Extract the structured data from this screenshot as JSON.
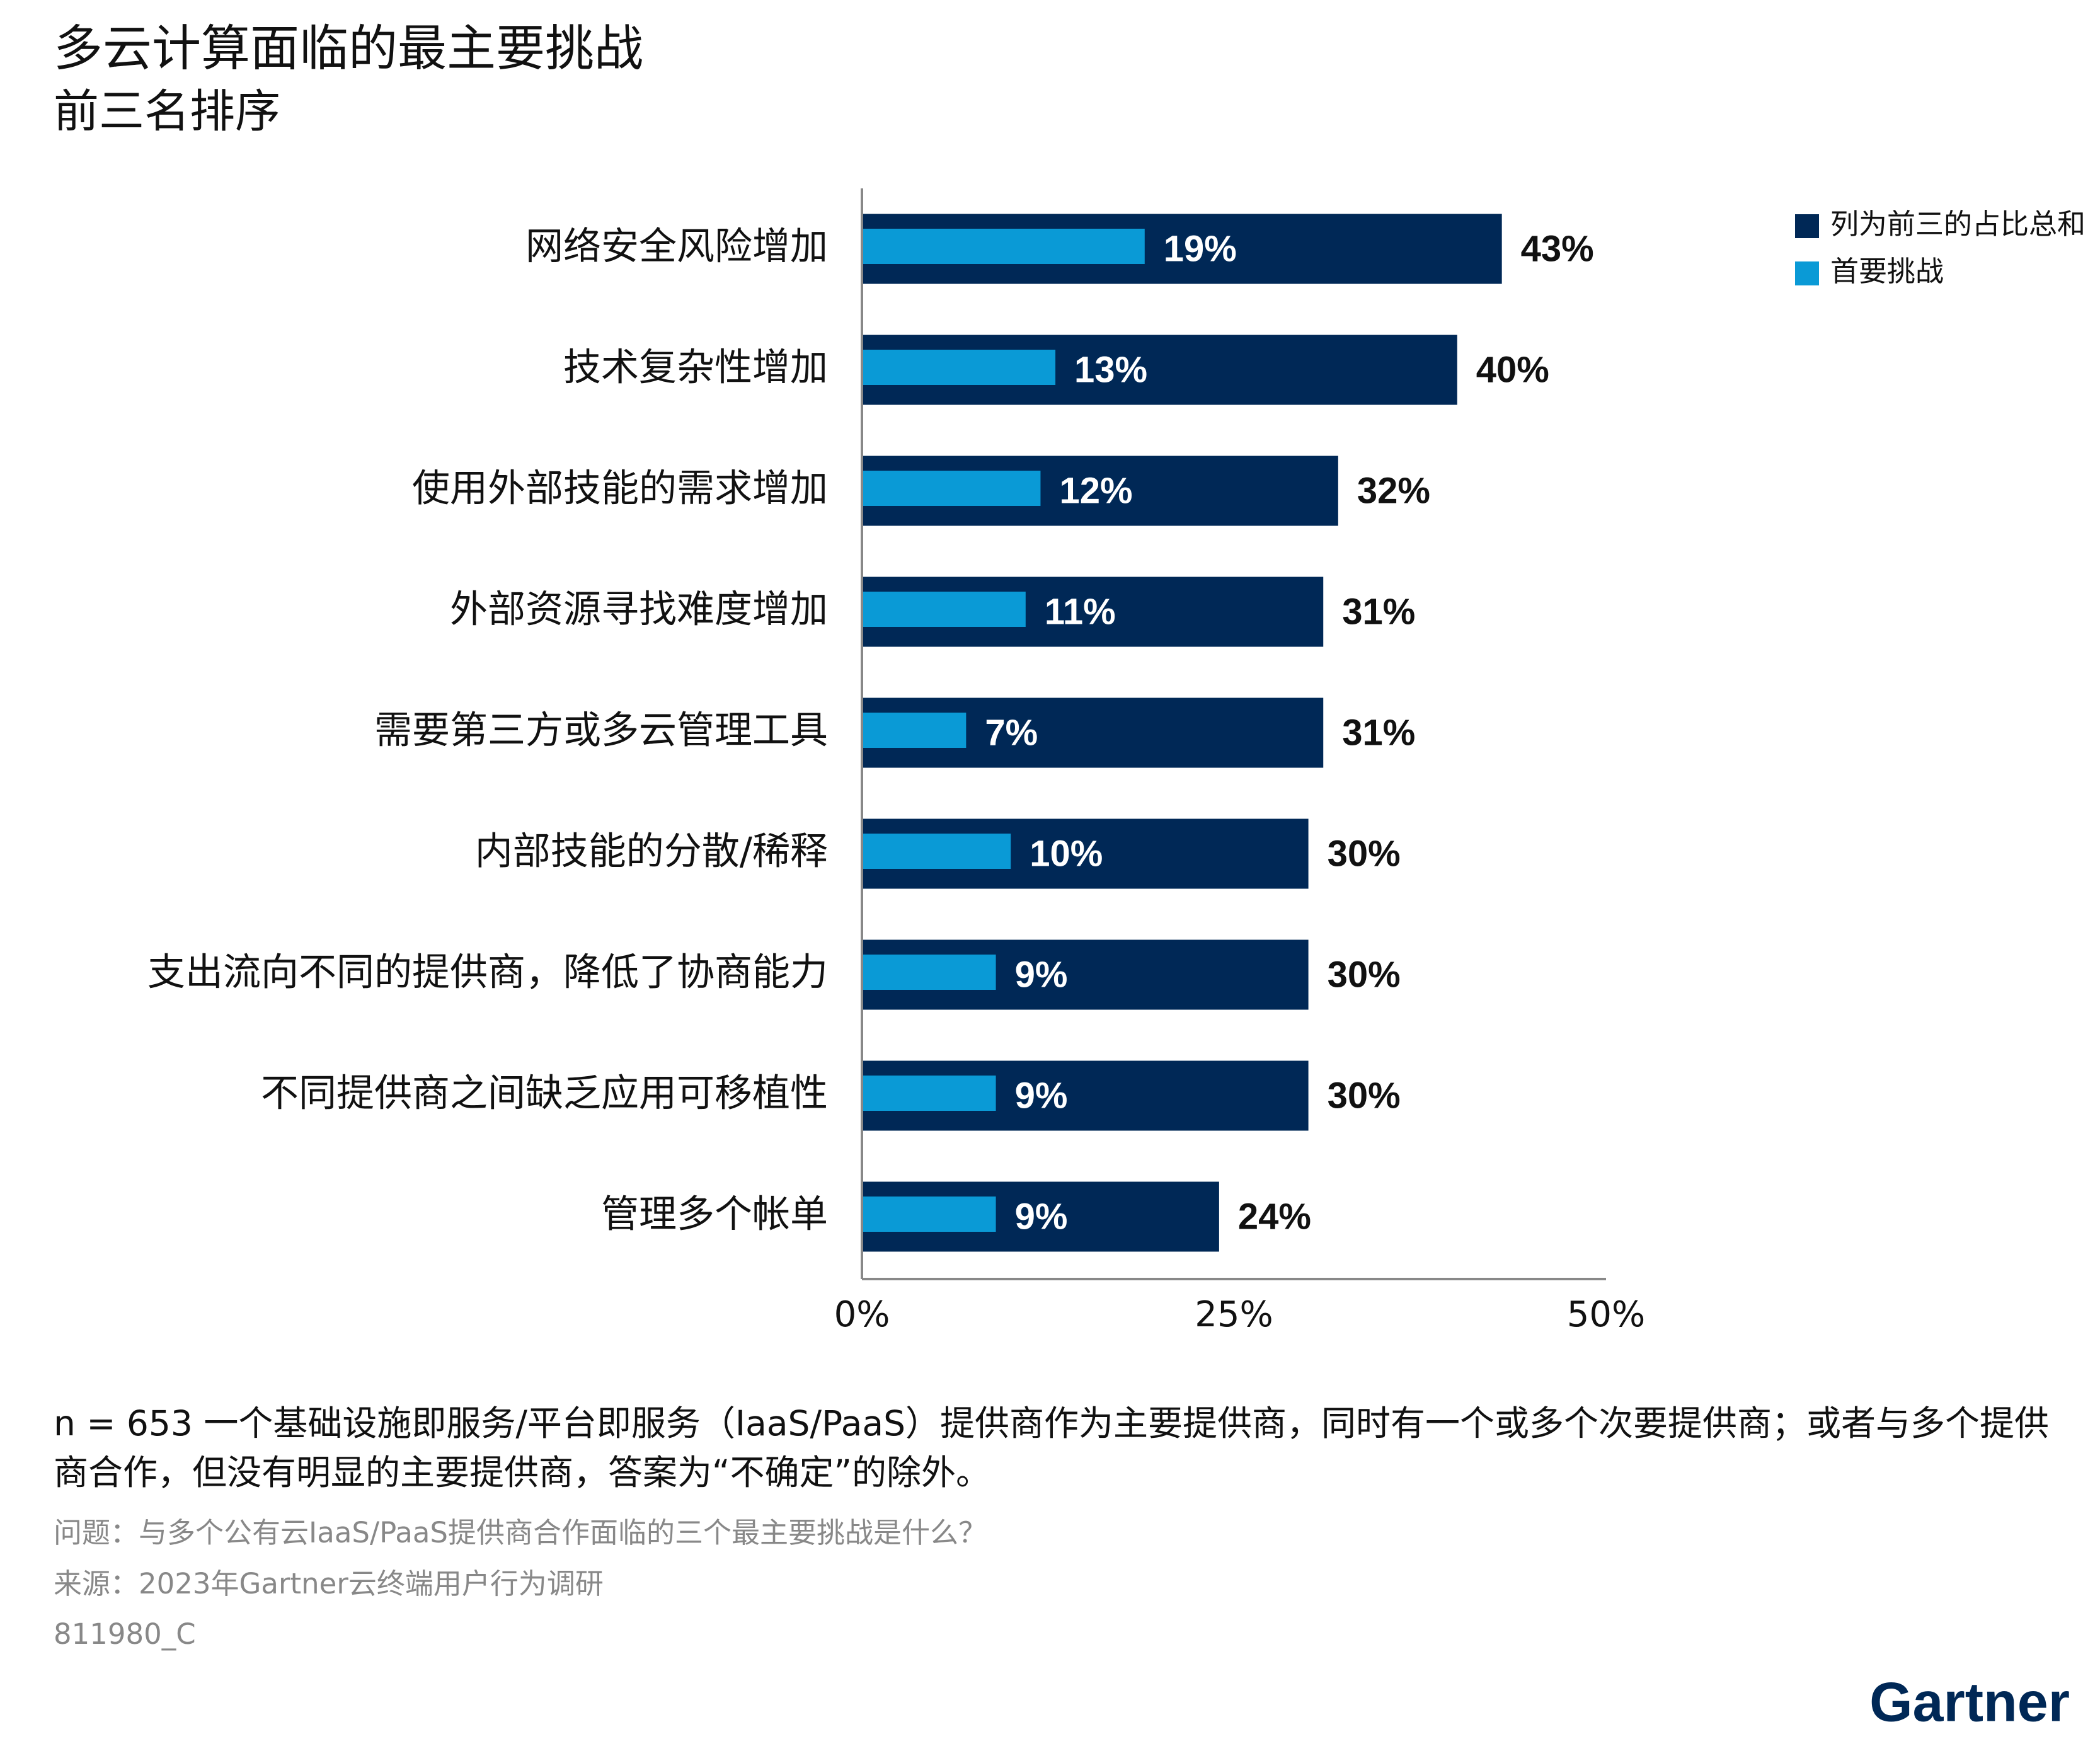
{
  "chart_data": {
    "type": "bar",
    "orientation": "horizontal",
    "title": "多云计算面临的最主要挑战",
    "subtitle": "前三名排序",
    "categories": [
      "网络安全风险增加",
      "技术复杂性增加",
      "使用外部技能的需求增加",
      "外部资源寻找难度增加",
      "需要第三方或多云管理工具",
      "内部技能的分散/稀释",
      "支出流向不同的提供商，降低了协商能力",
      "不同提供商之间缺乏应用可移植性",
      "管理多个帐单"
    ],
    "series": [
      {
        "name": "列为前三的占比总和",
        "color": "#002856",
        "values": [
          43,
          40,
          32,
          31,
          31,
          30,
          30,
          30,
          24
        ],
        "value_labels": [
          "43%",
          "40%",
          "32%",
          "31%",
          "31%",
          "30%",
          "30%",
          "30%",
          "24%"
        ]
      },
      {
        "name": "首要挑战",
        "color": "#0a9ad6",
        "values": [
          19,
          13,
          12,
          11,
          7,
          10,
          9,
          9,
          9
        ],
        "value_labels": [
          "19%",
          "13%",
          "12%",
          "11%",
          "7%",
          "10%",
          "9%",
          "9%",
          "9%"
        ]
      }
    ],
    "xlim": [
      0,
      50
    ],
    "xticks": [
      {
        "value": 0,
        "label": "0%"
      },
      {
        "value": 25,
        "label": "25%"
      },
      {
        "value": 50,
        "label": "50%"
      }
    ],
    "legend": "top-right",
    "note": "n = 653 一个基础设施即服务/平台即服务（IaaS/PaaS）提供商作为主要提供商，同时有一个或多个次要提供商；或者与多个提供商合作，但没有明显的主要提供商，答案为“不确定”的除外。",
    "question": "问题：与多个公有云IaaS/PaaS提供商合作面临的三个最主要挑战是什么？",
    "source": "来源：2023年Gartner云终端用户行为调研",
    "id": "811980_C",
    "logo": "Gartner"
  }
}
